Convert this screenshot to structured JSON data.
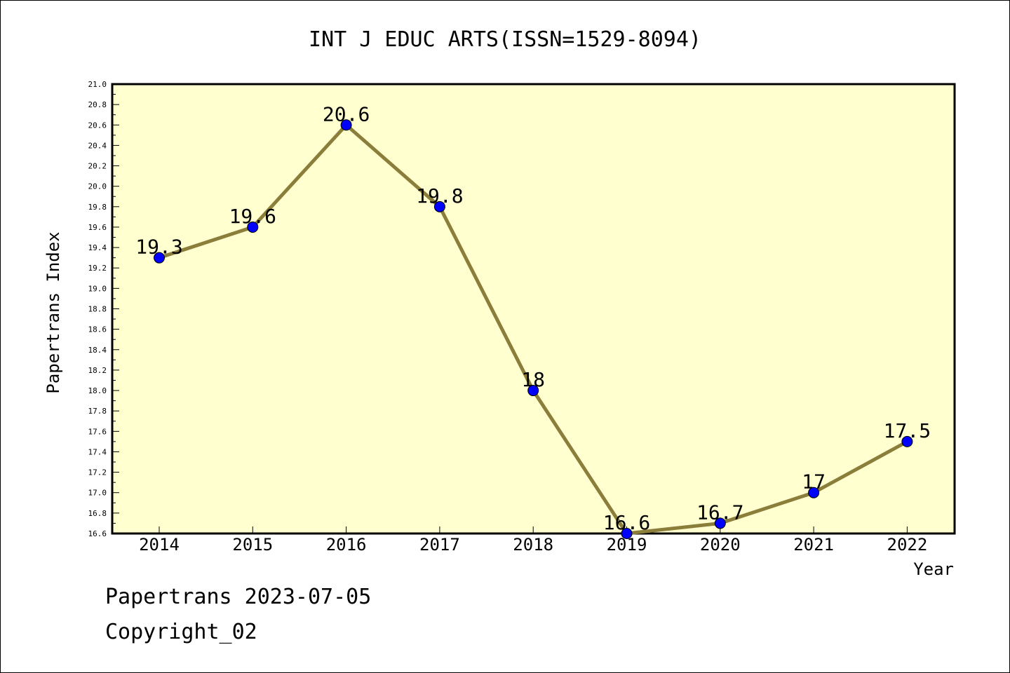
{
  "footer": {
    "date_line": "Papertrans 2023-07-05",
    "copyright_line": "Copyright_02"
  },
  "chart_data": {
    "type": "line",
    "title": "INT J EDUC ARTS(ISSN=1529-8094)",
    "xlabel": "Year",
    "ylabel": "Papertrans Index",
    "categories": [
      "2014",
      "2015",
      "2016",
      "2017",
      "2018",
      "2019",
      "2020",
      "2021",
      "2022"
    ],
    "series": [
      {
        "values": [
          19.3,
          19.6,
          20.6,
          19.8,
          18,
          16.6,
          16.7,
          17,
          17.5
        ],
        "data_labels": [
          "19.3",
          "19.6",
          "20.6",
          "19.8",
          "18",
          "16.6",
          "16.7",
          "17",
          "17.5"
        ]
      }
    ],
    "ylim": [
      16.6,
      21.0
    ],
    "y_tick_step": 0.2,
    "grid": false,
    "legend": "none",
    "colors": {
      "plot_background": "#ffffd0",
      "line": "#8b7d3a",
      "marker": "#0000ff"
    }
  }
}
